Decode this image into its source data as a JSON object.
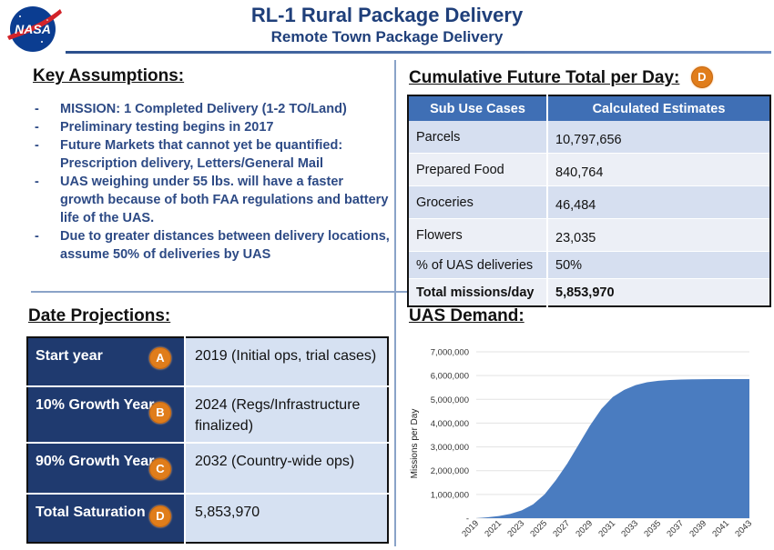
{
  "header": {
    "logo_text": "NASA",
    "title": "RL-1 Rural Package Delivery",
    "subtitle": "Remote Town Package Delivery"
  },
  "assumptions": {
    "title": "Key Assumptions:",
    "items": [
      "MISSION: 1 Completed Delivery (1-2 TO/Land)",
      "Preliminary testing begins in 2017",
      "Future Markets that cannot yet be quantified: Prescription delivery, Letters/General Mail",
      "UAS weighing under 55 lbs. will have a faster growth because of both FAA regulations and battery life of the UAS.",
      "Due to greater distances between delivery locations, assume 50% of deliveries by UAS"
    ]
  },
  "cumulative": {
    "title": "Cumulative Future Total per Day:",
    "badge": "D",
    "headers": [
      "Sub Use Cases",
      "Calculated Estimates"
    ],
    "rows": [
      [
        "Parcels",
        "10,797,656"
      ],
      [
        "Prepared Food",
        "840,764"
      ],
      [
        "Groceries",
        "46,484"
      ],
      [
        "Flowers",
        "23,035"
      ],
      [
        "% of UAS deliveries",
        "50%"
      ],
      [
        "Total missions/day",
        "5,853,970"
      ]
    ]
  },
  "projections": {
    "title": "Date Projections:",
    "rows": [
      {
        "label": "Start year",
        "badge": "A",
        "value": "2019 (Initial ops, trial cases)"
      },
      {
        "label": "10% Growth Year",
        "badge": "B",
        "value": "2024 (Regs/Infrastructure finalized)"
      },
      {
        "label": "90% Growth Year",
        "badge": "C",
        "value": "2032 (Country-wide ops)"
      },
      {
        "label": "Total Saturation",
        "badge": "D",
        "value": "5,853,970"
      }
    ]
  },
  "demand": {
    "title": "UAS Demand:"
  },
  "chart_data": {
    "type": "area",
    "title": "",
    "ylabel": "Missions per Day",
    "xlabel": "",
    "ylim": [
      0,
      7000000
    ],
    "y_ticks": [
      "-",
      "1,000,000",
      "2,000,000",
      "3,000,000",
      "4,000,000",
      "5,000,000",
      "6,000,000",
      "7,000,000"
    ],
    "x_ticks": [
      "2019",
      "2021",
      "2023",
      "2025",
      "2027",
      "2029",
      "2031",
      "2033",
      "2035",
      "2037",
      "2039",
      "2041",
      "2043"
    ],
    "color": "#4a7cc0",
    "x": [
      2019,
      2020,
      2021,
      2022,
      2023,
      2024,
      2025,
      2026,
      2027,
      2028,
      2029,
      2030,
      2031,
      2032,
      2033,
      2034,
      2035,
      2036,
      2037,
      2038,
      2039,
      2040,
      2041,
      2042,
      2043
    ],
    "values": [
      0,
      40000,
      90000,
      180000,
      330000,
      585000,
      1000000,
      1600000,
      2300000,
      3100000,
      3900000,
      4600000,
      5100000,
      5400000,
      5600000,
      5720000,
      5780000,
      5815000,
      5832000,
      5842000,
      5847000,
      5850000,
      5852000,
      5853000,
      5853970
    ]
  }
}
